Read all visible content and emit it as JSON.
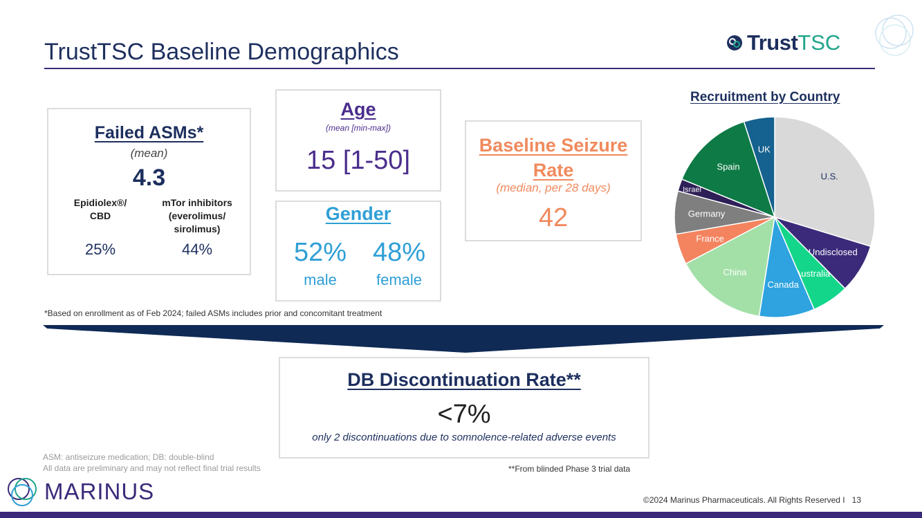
{
  "slide": {
    "title": "TrustTSC  Baseline Demographics",
    "logo": {
      "bold": "Trust",
      "light": "TSC"
    },
    "page_number": "13",
    "copyright": "©2024 Marinus Pharmaceuticals. All Rights Reserved   I",
    "company": "MARINUS"
  },
  "failed_asms": {
    "header": "Failed ASMs*",
    "sub": "(mean)",
    "value": "4.3",
    "cols": [
      {
        "label_line1": "Epidiolex®/",
        "label_line2": "CBD",
        "label_line3": "",
        "pct": "25%"
      },
      {
        "label_line1": "mTor inhibitors",
        "label_line2": "(everolimus/",
        "label_line3": "sirolimus)",
        "pct": "44%"
      }
    ]
  },
  "age": {
    "header": "Age",
    "sub": "(mean [min-max])",
    "value": "15 [1-50]"
  },
  "gender": {
    "header": "Gender",
    "male_pct": "52%",
    "male_label": "male",
    "female_pct": "48%",
    "female_label": "female"
  },
  "seizure": {
    "header_line1": "Baseline Seizure",
    "header_line2": "Rate",
    "sub": "(median, per 28 days)",
    "value": "42"
  },
  "footnote_enrollment": "*Based on enrollment as of Feb 2024; failed ASMs includes prior and concomitant treatment",
  "db": {
    "header": "DB Discontinuation Rate**",
    "value": "<7%",
    "sub": "only 2 discontinuations due to somnolence-related adverse events"
  },
  "footnote_phase3": "**From blinded Phase 3 trial data",
  "abbrev_line1": "ASM: antiseizure medication; DB: double-blind",
  "abbrev_line2": "All data are preliminary and may not reflect final trial results",
  "chart_data": {
    "type": "pie",
    "title": "Recruitment by Country",
    "series": [
      {
        "name": "U.S.",
        "value": 30,
        "color": "#d9d9d9",
        "label_color": "#1d2f5e"
      },
      {
        "name": "Undisclosed",
        "value": 8,
        "color": "#3b2a7a",
        "label_color": "#ffffff"
      },
      {
        "name": "Australia",
        "value": 6,
        "color": "#14d68a",
        "label_color": "#ffffff"
      },
      {
        "name": "Canada",
        "value": 9,
        "color": "#2ea3e0",
        "label_color": "#ffffff"
      },
      {
        "name": "China",
        "value": 15,
        "color": "#a3e0a8",
        "label_color": "#ffffff"
      },
      {
        "name": "France",
        "value": 5,
        "color": "#f4845f",
        "label_color": "#ffffff"
      },
      {
        "name": "Germany",
        "value": 7,
        "color": "#7f7f7f",
        "label_color": "#ffffff"
      },
      {
        "name": "Israel",
        "value": 2,
        "color": "#2e1f57",
        "label_color": "#ffffff"
      },
      {
        "name": "Spain",
        "value": 14,
        "color": "#0e7a45",
        "label_color": "#ffffff"
      },
      {
        "name": "UK",
        "value": 5,
        "color": "#15618f",
        "label_color": "#ffffff"
      }
    ]
  }
}
